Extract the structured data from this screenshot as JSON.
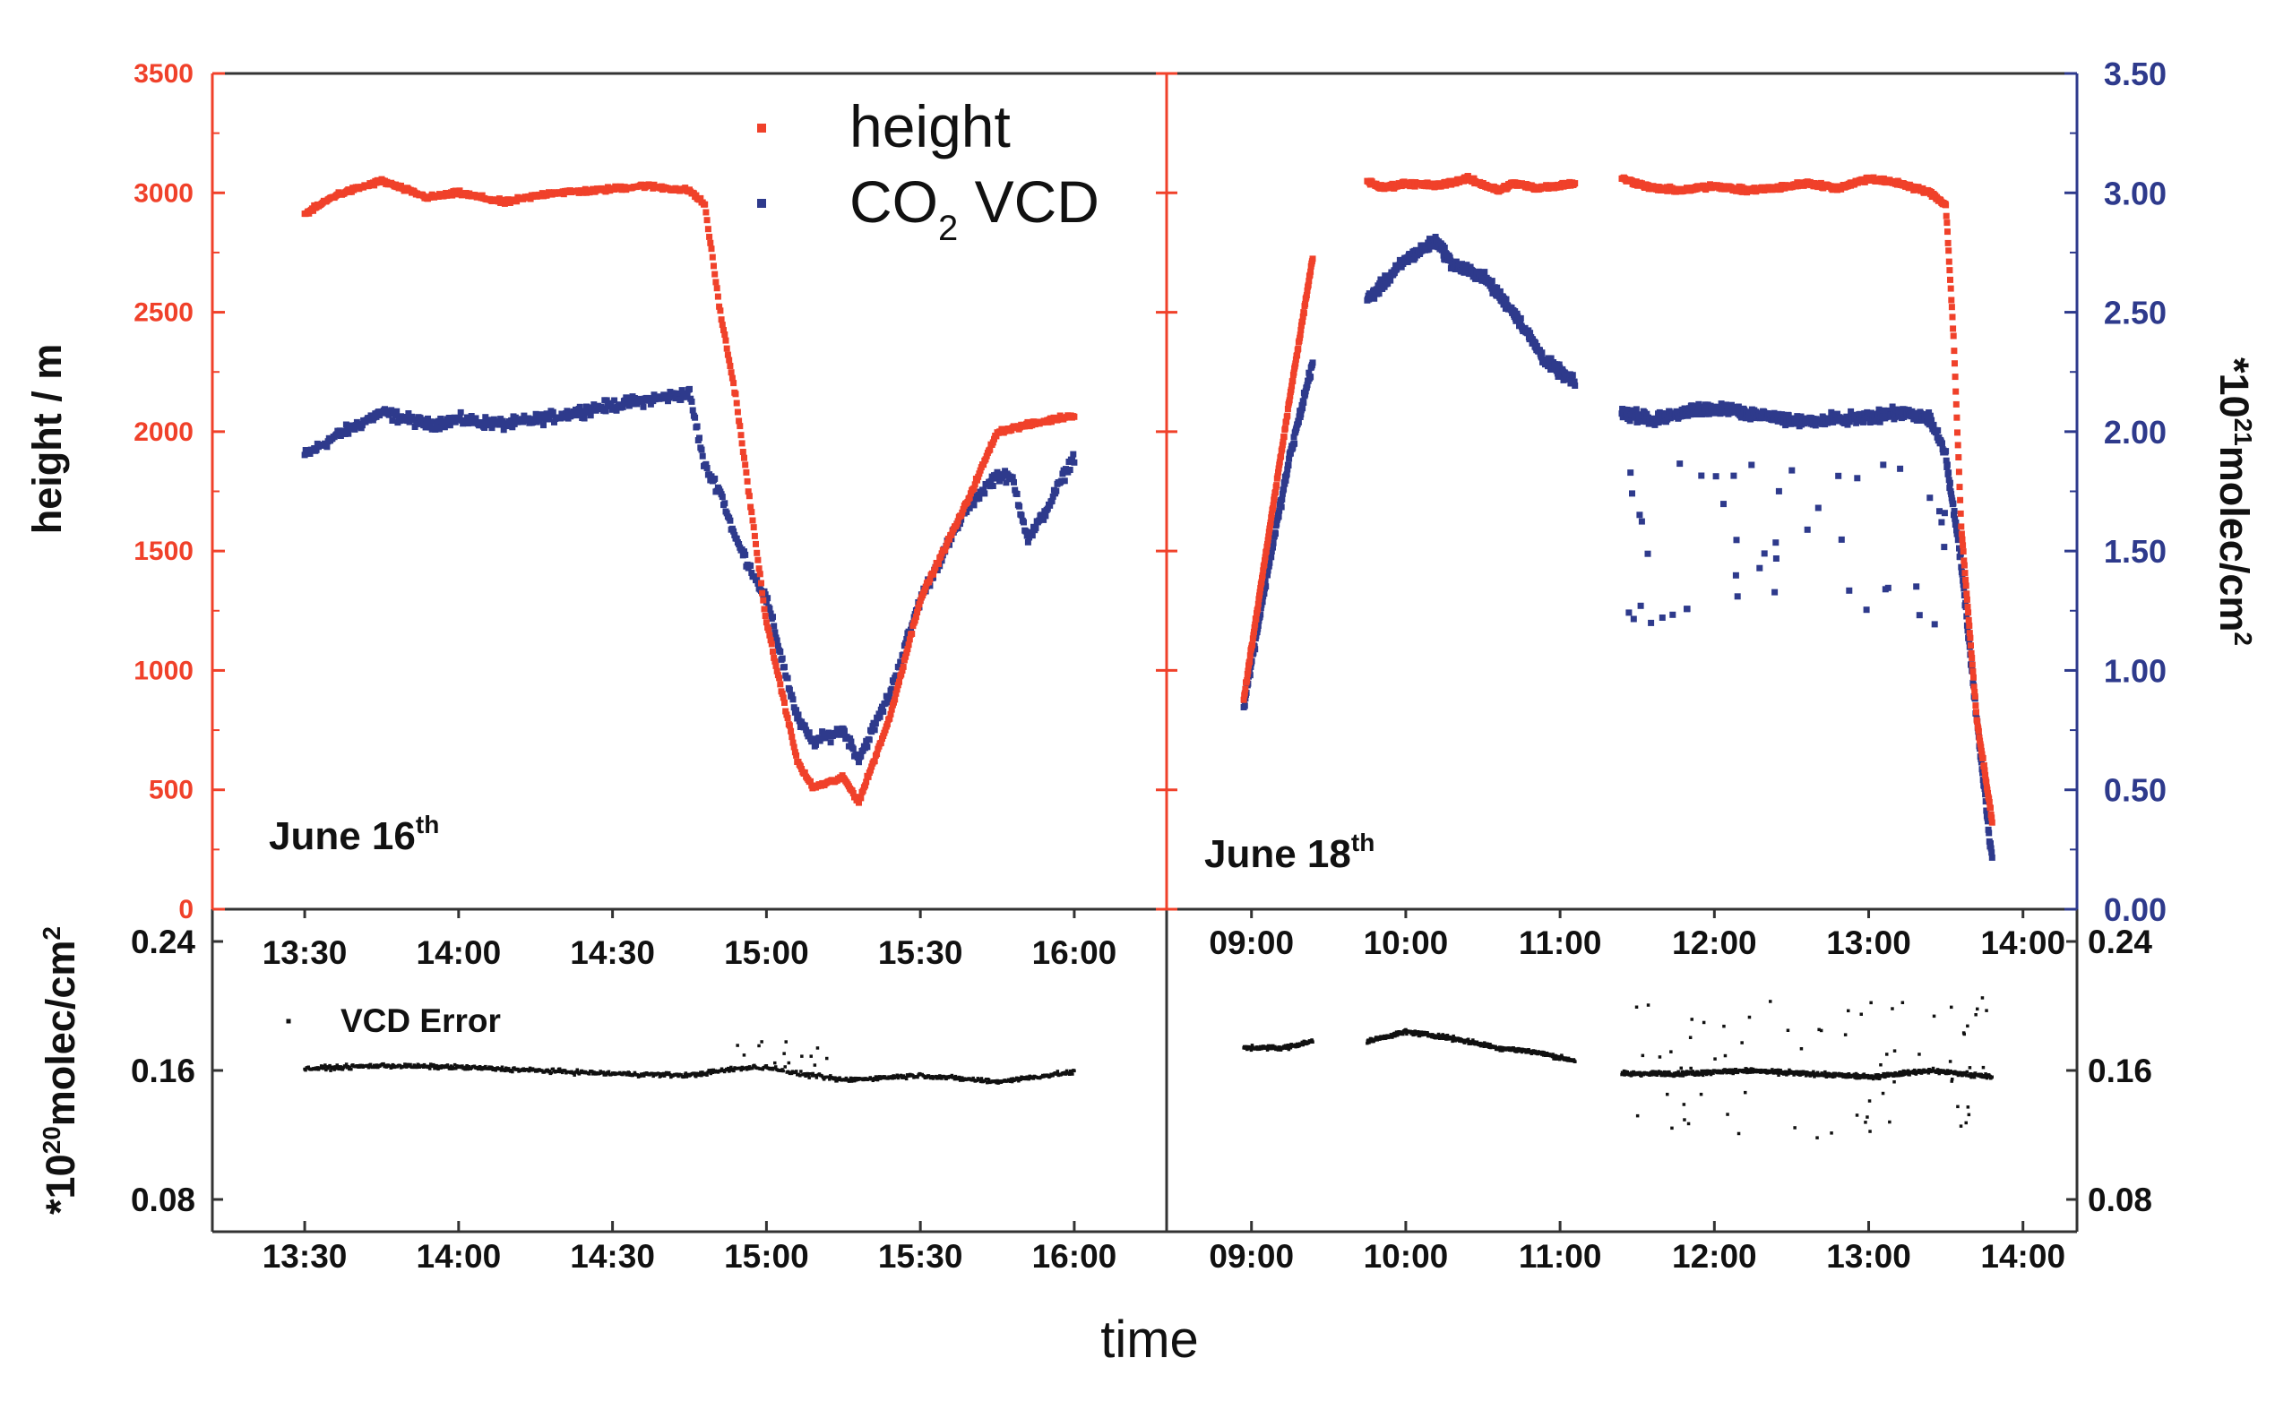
{
  "chart_data": [
    {
      "type": "scatter",
      "panel": "top",
      "xlabel": "time",
      "ylabel_left": "height / m",
      "ylabel_right": "*10^21 molec/cm^2",
      "ylabel_right_parts": {
        "pre": "*10",
        "sup": "21",
        "mid": "molec/cm",
        "sup2": "2"
      },
      "ylim_left": [
        0,
        3500
      ],
      "ylim_right": [
        0.0,
        3.5
      ],
      "left_ticks": [
        "0",
        "500",
        "1000",
        "1500",
        "2000",
        "2500",
        "3000",
        "3500"
      ],
      "right_ticks": [
        "0.00",
        "0.50",
        "1.00",
        "1.50",
        "2.00",
        "2.50",
        "3.00",
        "3.50"
      ],
      "legend": [
        {
          "name": "height",
          "color": "#f0412a"
        },
        {
          "name": "CO2 VCD",
          "label_main": "CO",
          "label_sub": "2",
          "label_rest": " VCD",
          "color": "#2e3a8c"
        }
      ],
      "panels": [
        {
          "label_main": "June 16",
          "label_sup": "th",
          "xlim_hours": [
            13.2,
            16.3
          ],
          "x_tick_labels": [
            "13:30",
            "14:00",
            "14:30",
            "15:00",
            "15:30",
            "16:00"
          ],
          "x_ticks_hours": [
            13.5,
            14.0,
            14.5,
            15.0,
            15.5,
            16.0
          ],
          "series": [
            {
              "name": "height",
              "color": "#f0412a",
              "x": [
                13.5,
                13.6,
                13.75,
                13.9,
                14.0,
                14.15,
                14.3,
                14.45,
                14.6,
                14.75,
                14.8,
                14.85,
                14.9,
                15.0,
                15.1,
                15.15,
                15.25,
                15.3,
                15.4,
                15.5,
                15.65,
                15.75,
                16.0
              ],
              "y": [
                2910,
                2990,
                3050,
                2980,
                3000,
                2960,
                3000,
                3010,
                3030,
                3010,
                2950,
                2500,
                2150,
                1200,
                620,
                510,
                550,
                450,
                800,
                1300,
                1700,
                2000,
                2070
              ]
            },
            {
              "name": "CO2 VCD",
              "color": "#2e3a8c",
              "x": [
                13.5,
                13.6,
                13.75,
                13.9,
                14.0,
                14.15,
                14.3,
                14.45,
                14.6,
                14.75,
                14.8,
                14.85,
                14.9,
                15.0,
                15.1,
                15.15,
                15.25,
                15.3,
                15.4,
                15.5,
                15.65,
                15.75,
                15.8,
                15.85,
                15.9,
                16.0
              ],
              "y": [
                1.9,
                1.98,
                2.08,
                2.03,
                2.05,
                2.03,
                2.06,
                2.1,
                2.13,
                2.16,
                1.85,
                1.75,
                1.55,
                1.3,
                0.8,
                0.7,
                0.75,
                0.63,
                0.9,
                1.3,
                1.68,
                1.82,
                1.8,
                1.55,
                1.65,
                1.9
              ]
            }
          ]
        },
        {
          "label_main": "June 18",
          "label_sup": "th",
          "xlim_hours": [
            8.45,
            14.35
          ],
          "x_tick_labels": [
            "09:00",
            "10:00",
            "11:00",
            "12:00",
            "13:00",
            "14:00"
          ],
          "x_ticks_hours": [
            9.0,
            10.0,
            11.0,
            12.0,
            13.0,
            14.0
          ],
          "series": [
            {
              "name": "height",
              "color": "#f0412a",
              "x": [
                8.95,
                9.1,
                9.25,
                9.4,
                null,
                9.75,
                9.85,
                10.0,
                10.2,
                10.4,
                10.6,
                10.7,
                10.85,
                11.1,
                null,
                11.4,
                11.6,
                11.8,
                12.0,
                12.2,
                12.4,
                12.6,
                12.8,
                13.0,
                13.2,
                13.4,
                13.5,
                13.55,
                13.6,
                13.7,
                13.8
              ],
              "y": [
                880,
                1520,
                2150,
                2740,
                null,
                3050,
                3020,
                3040,
                3030,
                3060,
                3010,
                3040,
                3020,
                3040,
                null,
                3060,
                3020,
                3010,
                3030,
                3010,
                3020,
                3040,
                3020,
                3060,
                3040,
                3000,
                2950,
                2400,
                1600,
                800,
                370
              ]
            },
            {
              "name": "CO2 VCD",
              "color": "#2e3a8c",
              "x": [
                8.95,
                9.1,
                9.25,
                9.4,
                null,
                9.75,
                9.9,
                10.0,
                10.2,
                10.3,
                10.5,
                10.7,
                10.9,
                11.1,
                null,
                11.4,
                11.6,
                11.8,
                12.0,
                12.3,
                12.6,
                12.8,
                13.0,
                13.2,
                13.4,
                13.5,
                13.6,
                13.7,
                13.8
              ],
              "y": [
                0.85,
                1.4,
                1.9,
                2.3,
                null,
                2.55,
                2.65,
                2.72,
                2.8,
                2.7,
                2.65,
                2.5,
                2.3,
                2.2,
                null,
                2.08,
                2.05,
                2.08,
                2.1,
                2.07,
                2.04,
                2.05,
                2.06,
                2.08,
                2.05,
                1.9,
                1.45,
                0.8,
                0.2
              ]
            }
          ]
        }
      ]
    },
    {
      "type": "scatter",
      "panel": "bottom",
      "xlabel": "time",
      "ylabel": "*10^20 molec/cm^2",
      "ylabel_parts": {
        "pre": "*10",
        "sup": "20",
        "mid": "molec/cm",
        "sup2": "2"
      },
      "ylim": [
        0.06,
        0.26
      ],
      "y_tick_labels": [
        "0.08",
        "0.16",
        "0.24"
      ],
      "y_ticks": [
        0.08,
        0.16,
        0.24
      ],
      "legend": [
        {
          "name": "VCD Error",
          "color": "#111111"
        }
      ],
      "panels": [
        {
          "xlim_hours": [
            13.2,
            16.3
          ],
          "x_tick_labels": [
            "13:30",
            "14:00",
            "14:30",
            "15:00",
            "15:30",
            "16:00"
          ],
          "x_ticks_hours": [
            13.5,
            14.0,
            14.5,
            15.0,
            15.5,
            16.0
          ],
          "series": [
            {
              "name": "VCD Error",
              "color": "#111111",
              "x": [
                13.5,
                13.75,
                14.0,
                14.25,
                14.5,
                14.75,
                14.9,
                15.0,
                15.1,
                15.25,
                15.5,
                15.75,
                16.0
              ],
              "y": [
                0.161,
                0.163,
                0.162,
                0.16,
                0.158,
                0.157,
                0.161,
                0.162,
                0.158,
                0.154,
                0.157,
                0.153,
                0.159
              ]
            }
          ]
        },
        {
          "xlim_hours": [
            8.45,
            14.35
          ],
          "x_tick_labels": [
            "09:00",
            "10:00",
            "11:00",
            "12:00",
            "13:00",
            "14:00"
          ],
          "x_ticks_hours": [
            9.0,
            10.0,
            11.0,
            12.0,
            13.0,
            14.0
          ],
          "series": [
            {
              "name": "VCD Error",
              "color": "#111111",
              "x": [
                8.95,
                9.2,
                9.4,
                null,
                9.75,
                10.0,
                10.3,
                10.6,
                10.8,
                11.1,
                null,
                11.4,
                11.8,
                12.2,
                12.6,
                13.0,
                13.4,
                13.8
              ],
              "y": [
                0.174,
                0.174,
                0.178,
                null,
                0.178,
                0.184,
                0.18,
                0.174,
                0.172,
                0.166,
                null,
                0.158,
                0.158,
                0.16,
                0.158,
                0.156,
                0.16,
                0.156
              ]
            }
          ]
        }
      ]
    }
  ],
  "panel_labels": {
    "left": {
      "main": "June 16",
      "sup": "th"
    },
    "right": {
      "main": "June 18",
      "sup": "th"
    }
  }
}
